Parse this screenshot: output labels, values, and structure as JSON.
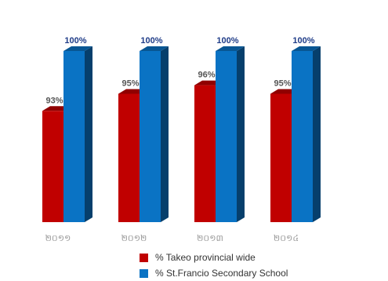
{
  "chart_data": {
    "type": "bar",
    "style": "3d-clustered-column",
    "categories": [
      "២០១១",
      "២០១២",
      "២០១៣",
      "២០១៤"
    ],
    "series": [
      {
        "name": "% Takeo provincial wide",
        "values": [
          93,
          95,
          96,
          95
        ],
        "labels": [
          "93%",
          "95%",
          "96%",
          "95%"
        ],
        "color": "#c00000"
      },
      {
        "name": "% St.Francio Secondary School",
        "values": [
          100,
          100,
          100,
          100
        ],
        "labels": [
          "100%",
          "100%",
          "100%",
          "100%"
        ],
        "color": "#0a73c4"
      }
    ],
    "ylim": [
      80,
      100
    ],
    "grid": false,
    "legend_position": "bottom"
  }
}
